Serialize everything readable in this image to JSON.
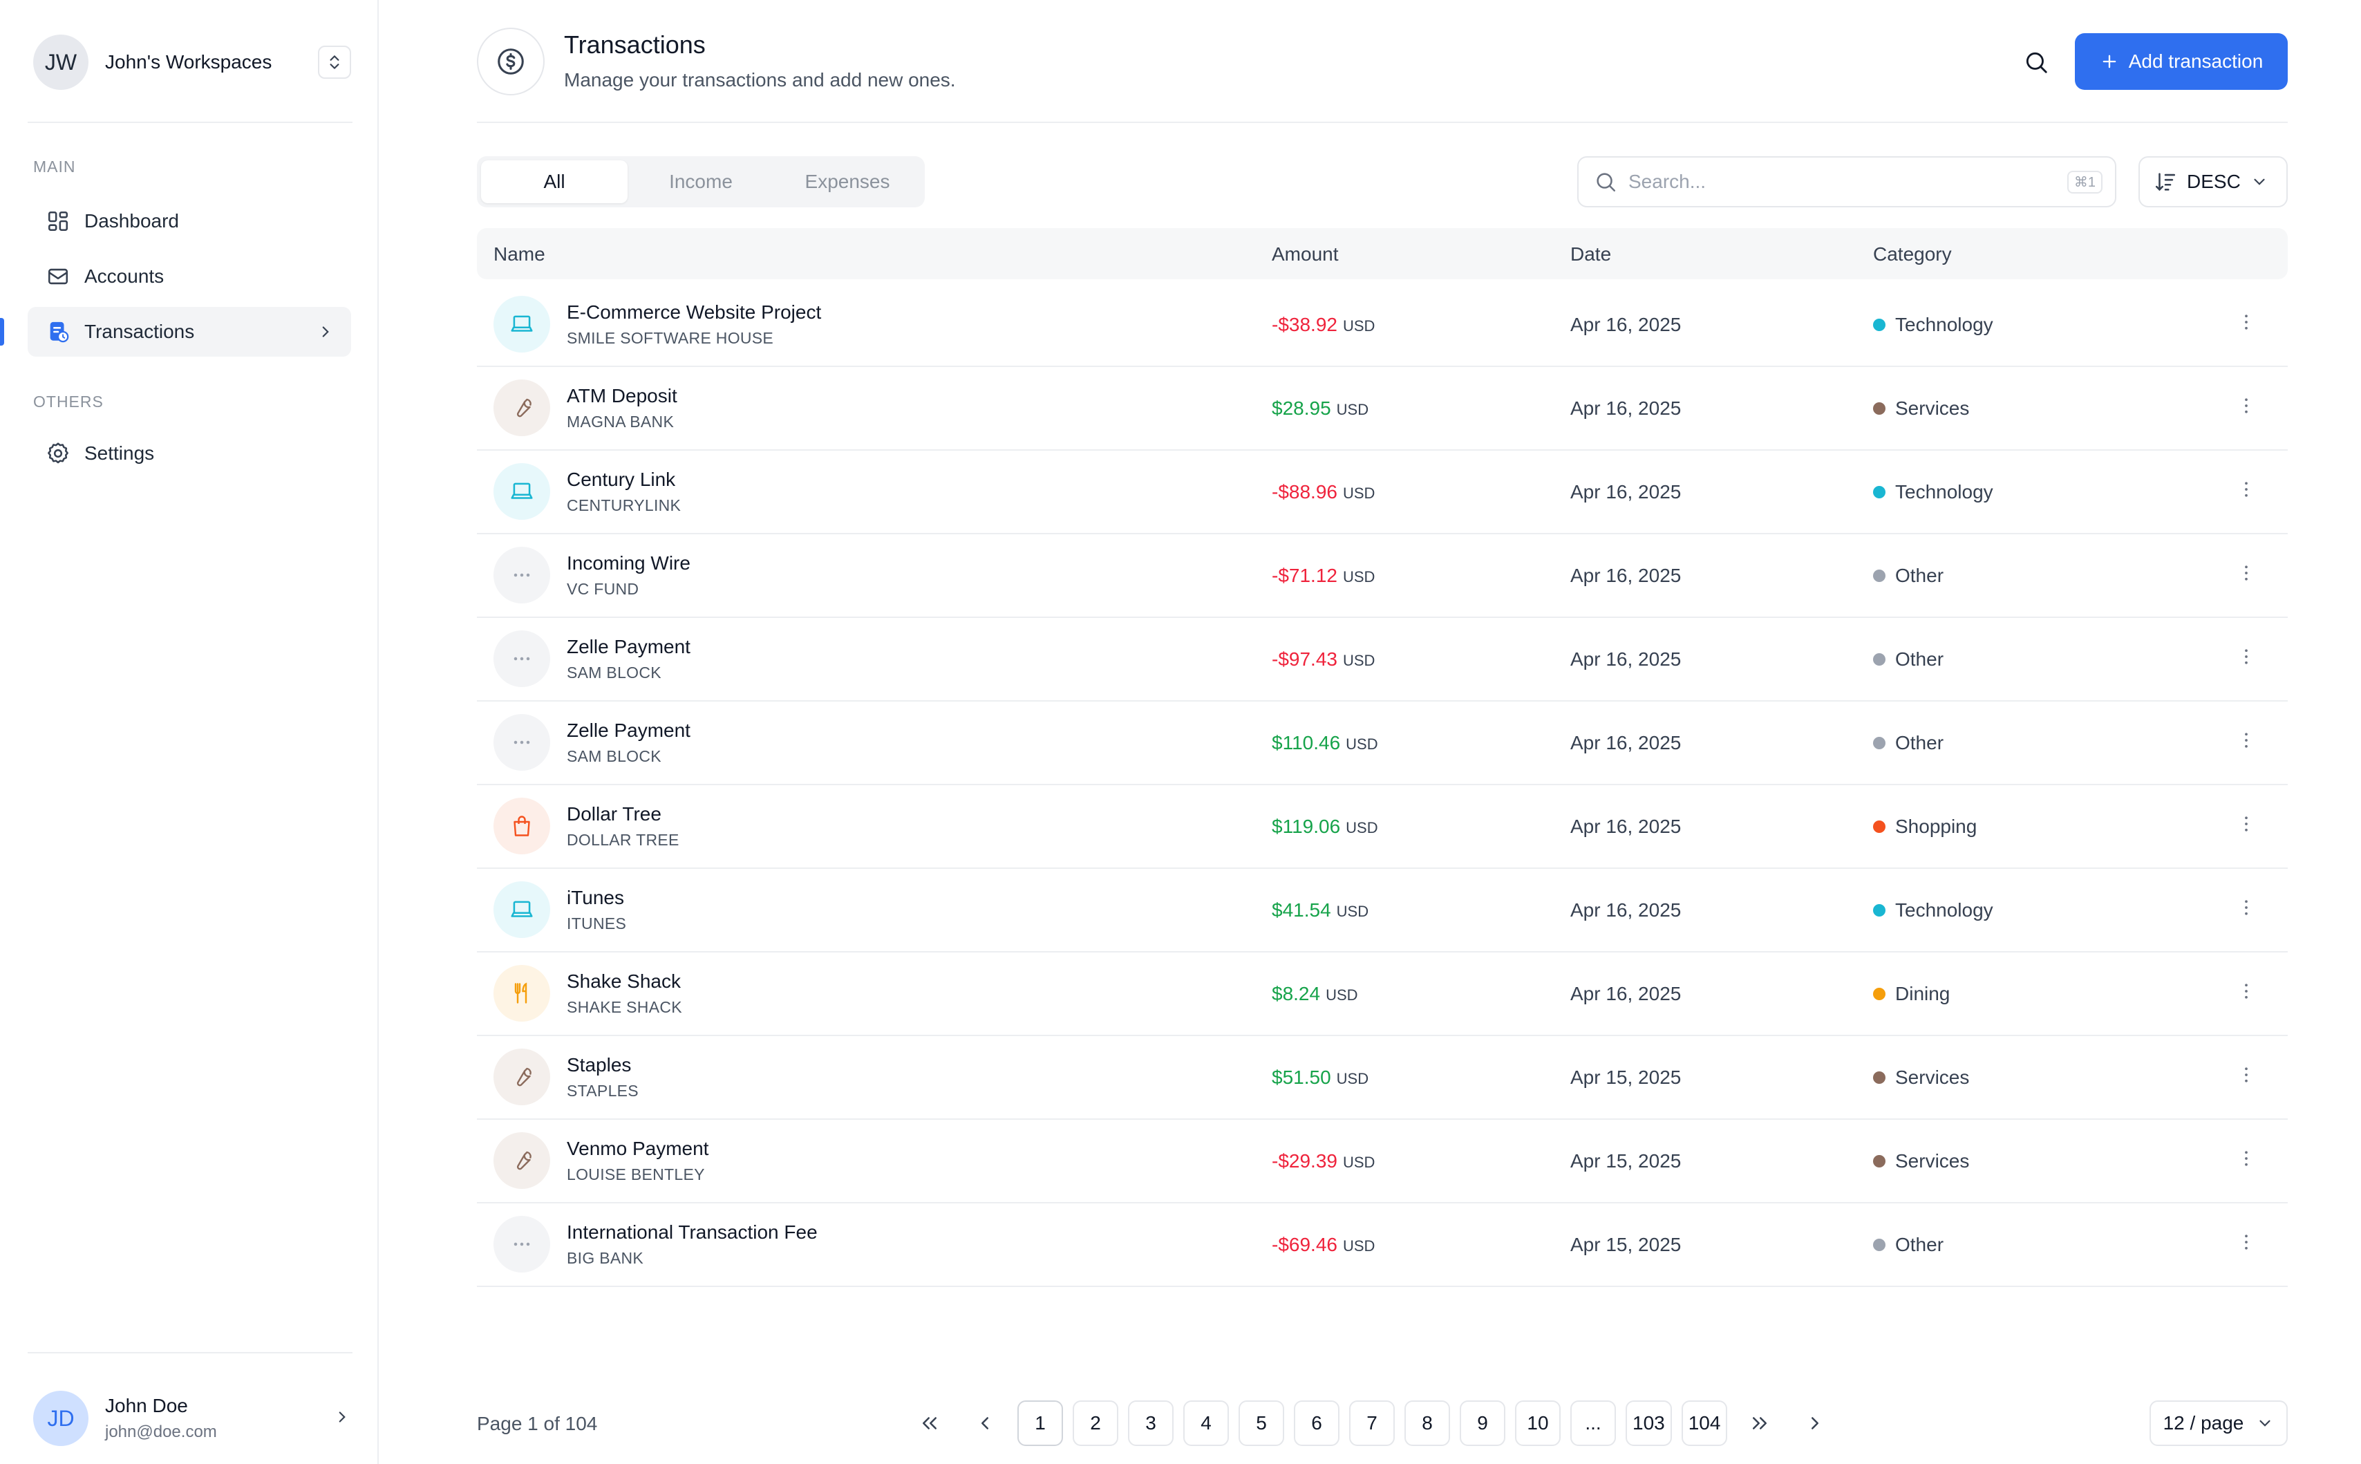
{
  "sidebar": {
    "workspace": {
      "initials": "JW",
      "name": "John's Workspaces"
    },
    "sections": {
      "main": "MAIN",
      "others": "OTHERS"
    },
    "items": [
      {
        "label": "Dashboard",
        "icon": "dashboard-icon"
      },
      {
        "label": "Accounts",
        "icon": "accounts-icon"
      },
      {
        "label": "Transactions",
        "icon": "transactions-icon",
        "active": true
      },
      {
        "label": "Settings",
        "icon": "settings-icon"
      }
    ],
    "user": {
      "initials": "JD",
      "name": "John Doe",
      "email": "john@doe.com"
    }
  },
  "header": {
    "title": "Transactions",
    "subtitle": "Manage your transactions and add new ones.",
    "add_label": "Add transaction"
  },
  "filters": {
    "tabs": [
      "All",
      "Income",
      "Expenses"
    ],
    "selected_tab": "All",
    "search_placeholder": "Search...",
    "search_shortcut": "⌘1",
    "sort_label": "DESC"
  },
  "table": {
    "columns": [
      "Name",
      "Amount",
      "Date",
      "Category"
    ],
    "currency": "USD",
    "rows": [
      {
        "name": "E-Commerce Website Project",
        "merchant": "SMILE SOFTWARE HOUSE",
        "amount": "-$38.92",
        "date": "Apr 16, 2025",
        "category": "Technology"
      },
      {
        "name": "ATM Deposit",
        "merchant": "MAGNA BANK",
        "amount": "$28.95",
        "date": "Apr 16, 2025",
        "category": "Services"
      },
      {
        "name": "Century Link",
        "merchant": "CENTURYLINK",
        "amount": "-$88.96",
        "date": "Apr 16, 2025",
        "category": "Technology"
      },
      {
        "name": "Incoming Wire",
        "merchant": "VC FUND",
        "amount": "-$71.12",
        "date": "Apr 16, 2025",
        "category": "Other"
      },
      {
        "name": "Zelle Payment",
        "merchant": "SAM BLOCK",
        "amount": "-$97.43",
        "date": "Apr 16, 2025",
        "category": "Other"
      },
      {
        "name": "Zelle Payment",
        "merchant": "SAM BLOCK",
        "amount": "$110.46",
        "date": "Apr 16, 2025",
        "category": "Other"
      },
      {
        "name": "Dollar Tree",
        "merchant": "DOLLAR TREE",
        "amount": "$119.06",
        "date": "Apr 16, 2025",
        "category": "Shopping"
      },
      {
        "name": "iTunes",
        "merchant": "ITUNES",
        "amount": "$41.54",
        "date": "Apr 16, 2025",
        "category": "Technology"
      },
      {
        "name": "Shake Shack",
        "merchant": "SHAKE SHACK",
        "amount": "$8.24",
        "date": "Apr 16, 2025",
        "category": "Dining"
      },
      {
        "name": "Staples",
        "merchant": "STAPLES",
        "amount": "$51.50",
        "date": "Apr 15, 2025",
        "category": "Services"
      },
      {
        "name": "Venmo Payment",
        "merchant": "LOUISE BENTLEY",
        "amount": "-$29.39",
        "date": "Apr 15, 2025",
        "category": "Services"
      },
      {
        "name": "International Transaction Fee",
        "merchant": "BIG BANK",
        "amount": "-$69.46",
        "date": "Apr 15, 2025",
        "category": "Other"
      }
    ]
  },
  "categories": {
    "Technology": {
      "color": "#19b6d2",
      "bg": "#e7f8fb",
      "icon": "laptop-icon"
    },
    "Services": {
      "color": "#8b6b5c",
      "bg": "#f4efec",
      "icon": "wrench-icon"
    },
    "Other": {
      "color": "#9ca3af",
      "bg": "#f3f4f6",
      "icon": "more-horizontal-icon"
    },
    "Shopping": {
      "color": "#f4511e",
      "bg": "#fdeee8",
      "icon": "shopping-bag-icon"
    },
    "Dining": {
      "color": "#f59e0b",
      "bg": "#fef4e4",
      "icon": "utensils-icon"
    }
  },
  "colors": {
    "accent": "#2f6fef",
    "positive": "#16a34a",
    "negative": "#ef233c"
  },
  "pagination": {
    "label": "Page 1 of 104",
    "current": "1",
    "pages": [
      "1",
      "2",
      "3",
      "4",
      "5",
      "6",
      "7",
      "8",
      "9",
      "10",
      "...",
      "103",
      "104"
    ],
    "per_page": "12 / page"
  }
}
